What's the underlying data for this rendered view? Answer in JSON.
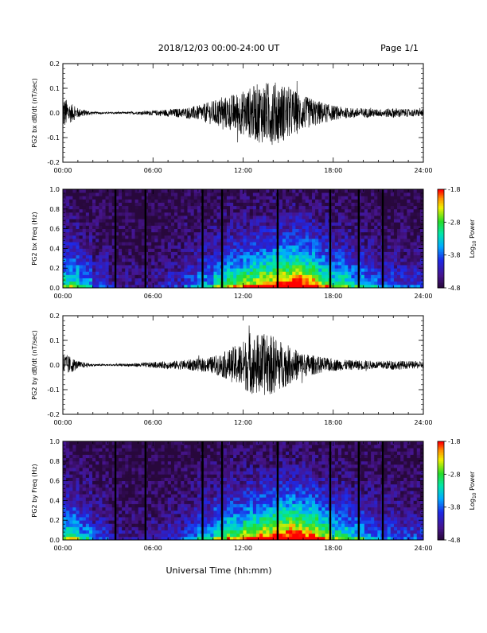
{
  "header": {
    "title": "2018/12/03  00:00-24:00 UT",
    "page": "Page 1/1"
  },
  "footer": {
    "xlabel": "Universal Time (hh:mm)"
  },
  "time_ticks": [
    "00:00",
    "06:00",
    "12:00",
    "18:00",
    "24:00"
  ],
  "colorbar": {
    "label": "Log10 Power",
    "label_main": "Log",
    "label_sub": "10",
    "label_rest": " Power",
    "ticks": [
      "-1.8",
      "-2.8",
      "-3.8",
      "-4.8"
    ],
    "range": [
      -4.8,
      -1.8
    ]
  },
  "colors": {
    "background": "#ffffff",
    "trace": "#000000",
    "spectrogram_low": "#2a0a3a",
    "spectrogram_high": "#ff0000"
  },
  "chart_data": [
    {
      "type": "line",
      "ylabel": "PG2 bx dB/dt (nT/sec)",
      "xlim": [
        0,
        24
      ],
      "ylim": [
        -0.2,
        0.2
      ],
      "yticks": [
        "0.2",
        "0.1",
        "0.0",
        "-0.1",
        "-0.2"
      ],
      "xticks": [
        "00:00",
        "06:00",
        "12:00",
        "18:00",
        "24:00"
      ],
      "x": [
        0,
        0.5,
        1,
        2,
        3,
        4,
        5,
        6,
        7,
        8,
        9,
        10,
        11,
        12,
        13,
        14,
        15,
        16,
        17,
        18,
        19,
        20,
        21,
        22,
        23,
        24
      ],
      "envelope": [
        0.07,
        0.04,
        0.02,
        0.005,
        0.004,
        0.004,
        0.006,
        0.01,
        0.015,
        0.02,
        0.03,
        0.05,
        0.07,
        0.09,
        0.12,
        0.13,
        0.11,
        0.07,
        0.05,
        0.03,
        0.02,
        0.02,
        0.015,
        0.02,
        0.015,
        0.015
      ]
    },
    {
      "type": "heatmap",
      "ylabel": "PG2 bx Freq (Hz)",
      "xlim": [
        0,
        24
      ],
      "ylim": [
        0,
        1.0
      ],
      "yticks": [
        "1.0",
        "0.8",
        "0.6",
        "0.4",
        "0.2",
        "0.0"
      ],
      "xticks": [
        "00:00",
        "06:00",
        "12:00",
        "18:00",
        "24:00"
      ],
      "zlim": [
        -4.8,
        -1.8
      ],
      "gaps_hours": [
        3.5,
        5.5,
        9.3,
        10.6,
        14.3,
        17.8,
        19.7,
        21.3
      ],
      "activity": [
        0.55,
        0.4,
        0.25,
        0.15,
        0.12,
        0.12,
        0.15,
        0.2,
        0.3,
        0.4,
        0.55,
        0.65,
        0.75,
        0.85,
        0.95,
        1.0,
        0.9,
        0.7,
        0.55,
        0.45,
        0.35,
        0.3,
        0.25,
        0.25,
        0.2
      ]
    },
    {
      "type": "line",
      "ylabel": "PG2 by dB/dt (nT/sec)",
      "xlim": [
        0,
        24
      ],
      "ylim": [
        -0.2,
        0.2
      ],
      "yticks": [
        "0.2",
        "0.1",
        "0.0",
        "-0.1",
        "-0.2"
      ],
      "xticks": [
        "00:00",
        "06:00",
        "12:00",
        "18:00",
        "24:00"
      ],
      "x": [
        0,
        0.5,
        1,
        2,
        3,
        4,
        5,
        6,
        7,
        8,
        9,
        10,
        11,
        12,
        13,
        14,
        15,
        16,
        17,
        18,
        19,
        20,
        21,
        22,
        23,
        24
      ],
      "envelope": [
        0.05,
        0.035,
        0.015,
        0.005,
        0.004,
        0.005,
        0.008,
        0.012,
        0.015,
        0.02,
        0.025,
        0.035,
        0.06,
        0.1,
        0.13,
        0.12,
        0.08,
        0.05,
        0.035,
        0.025,
        0.02,
        0.02,
        0.015,
        0.02,
        0.015,
        0.015
      ]
    },
    {
      "type": "heatmap",
      "ylabel": "PG2 by Freq (Hz)",
      "xlim": [
        0,
        24
      ],
      "ylim": [
        0,
        1.0
      ],
      "yticks": [
        "1.0",
        "0.8",
        "0.6",
        "0.4",
        "0.2",
        "0.0"
      ],
      "xticks": [
        "00:00",
        "06:00",
        "12:00",
        "18:00",
        "24:00"
      ],
      "zlim": [
        -4.8,
        -1.8
      ],
      "gaps_hours": [
        3.5,
        5.5,
        9.3,
        10.6,
        14.3,
        17.8,
        19.7,
        21.3
      ],
      "activity": [
        0.55,
        0.4,
        0.25,
        0.15,
        0.12,
        0.12,
        0.15,
        0.2,
        0.3,
        0.4,
        0.55,
        0.65,
        0.75,
        0.85,
        0.95,
        1.0,
        0.9,
        0.7,
        0.55,
        0.45,
        0.35,
        0.3,
        0.25,
        0.25,
        0.2
      ]
    }
  ]
}
